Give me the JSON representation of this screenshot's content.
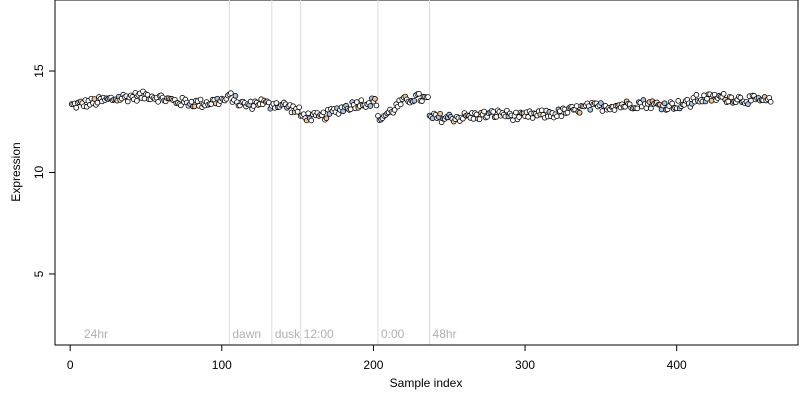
{
  "chart_data": {
    "type": "scatter",
    "title": "",
    "xlabel": "Sample index",
    "ylabel": "Expression",
    "xlim": [
      -10,
      480
    ],
    "ylim": [
      1.5,
      18.5
    ],
    "x_ticks": [
      0,
      100,
      200,
      300,
      400
    ],
    "y_ticks": [
      5,
      10,
      15
    ],
    "grid": false,
    "legend": "none",
    "colors": {
      "point_edge": "#000000",
      "fill_default": "#ffffff",
      "fill_blue": "#a9c4e6",
      "fill_orange": "#f2c48f",
      "vline": "#dcdcdc",
      "vlabel": "#b0b0b0"
    },
    "vertical_markers": [
      {
        "x": 105,
        "label": "dawn"
      },
      {
        "x": 133,
        "label": "dusk"
      },
      {
        "x": 152,
        "label": "12:00"
      },
      {
        "x": 203,
        "label": "0:00"
      },
      {
        "x": 237,
        "label": "48hr"
      }
    ],
    "corner_label": "24hr",
    "segments": [
      {
        "x_start": 1,
        "x_end": 104,
        "y_values": [
          13.3,
          13.5,
          13.7,
          13.8,
          13.5,
          13.4,
          13.6
        ]
      },
      {
        "x_start": 105,
        "x_end": 132,
        "y_values": [
          13.8,
          13.4,
          13.3,
          13.5,
          13.3
        ]
      },
      {
        "x_start": 133,
        "x_end": 151,
        "y_values": [
          13.4,
          13.3,
          13.0
        ]
      },
      {
        "x_start": 152,
        "x_end": 202,
        "y_values": [
          12.8,
          12.7,
          13.1,
          13.4,
          13.5
        ]
      },
      {
        "x_start": 203,
        "x_end": 236,
        "y_values": [
          12.6,
          13.0,
          13.5,
          13.7,
          13.6
        ]
      },
      {
        "x_start": 237,
        "x_end": 300,
        "y_values": [
          12.7,
          12.7,
          12.8,
          12.9,
          12.7
        ]
      },
      {
        "x_start": 301,
        "x_end": 360,
        "y_values": [
          12.8,
          12.9,
          13.2,
          13.3
        ]
      },
      {
        "x_start": 361,
        "x_end": 410,
        "y_values": [
          13.3,
          13.4,
          13.3,
          13.4
        ]
      },
      {
        "x_start": 411,
        "x_end": 462,
        "y_values": [
          13.6,
          13.7,
          13.6,
          13.5
        ]
      }
    ]
  }
}
